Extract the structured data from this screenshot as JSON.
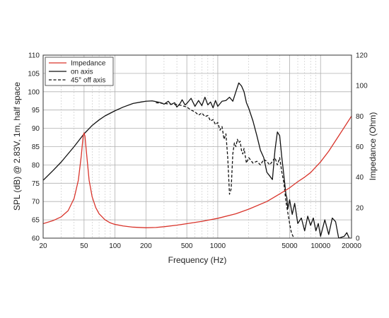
{
  "chart_data": {
    "type": "line",
    "xlabel": "Frequency (Hz)",
    "ylabel_left": "SPL (dB) @ 2.83V, 1m, half space",
    "ylabel_right": "Impedance (Ohm)",
    "x_scale": "log",
    "xlim": [
      20,
      20000
    ],
    "ylim_left": [
      60,
      110
    ],
    "ylim_right": [
      0,
      120
    ],
    "grid": true,
    "legend_position": "top-left",
    "x_ticks": [
      20,
      50,
      100,
      200,
      500,
      1000,
      5000,
      10000,
      20000
    ],
    "x_tick_labels": [
      "20",
      "50",
      "100",
      "200",
      "500",
      "1000",
      "5000",
      "10000",
      "20000"
    ],
    "y_left_ticks": [
      60,
      65,
      70,
      75,
      80,
      85,
      90,
      95,
      100,
      105,
      110
    ],
    "y_left_tick_labels": [
      "60",
      "65",
      "70",
      "75",
      "80",
      "85",
      "90",
      "95",
      "100",
      "105",
      "110"
    ],
    "y_right_ticks": [
      0,
      20,
      40,
      60,
      80,
      100,
      120
    ],
    "y_right_tick_labels": [
      "0",
      "20",
      "40",
      "60",
      "80",
      "100",
      "120"
    ],
    "series": [
      {
        "name": "Impedance",
        "axis": "right",
        "color": "#d9342b",
        "style": "solid",
        "x": [
          20,
          25,
          30,
          35,
          40,
          44,
          47,
          49,
          50,
          51,
          53,
          56,
          60,
          65,
          70,
          80,
          90,
          100,
          120,
          150,
          200,
          250,
          300,
          400,
          500,
          700,
          1000,
          1500,
          2000,
          3000,
          4000,
          5000,
          6000,
          7000,
          8000,
          10000,
          12000,
          15000,
          20000
        ],
        "y": [
          9.5,
          11.5,
          14,
          18,
          26,
          38,
          54,
          67,
          69,
          67,
          55,
          38,
          27,
          20,
          16,
          12,
          10,
          9,
          8,
          7.2,
          6.8,
          7,
          7.5,
          8.5,
          9.5,
          11,
          13,
          16,
          19,
          24,
          29,
          33,
          37,
          40,
          43,
          50,
          57,
          67,
          80
        ]
      },
      {
        "name": "on axis",
        "axis": "left",
        "color": "#111111",
        "style": "solid",
        "x": [
          20,
          25,
          30,
          40,
          50,
          60,
          70,
          80,
          100,
          120,
          150,
          180,
          200,
          230,
          250,
          280,
          300,
          330,
          350,
          380,
          400,
          430,
          450,
          480,
          500,
          550,
          600,
          650,
          700,
          750,
          800,
          850,
          900,
          950,
          1000,
          1100,
          1200,
          1300,
          1400,
          1500,
          1600,
          1700,
          1800,
          1900,
          2000,
          2200,
          2400,
          2600,
          2800,
          3000,
          3200,
          3400,
          3600,
          3800,
          4000,
          4200,
          4400,
          4600,
          4700,
          4800,
          5000,
          5300,
          5600,
          6000,
          6500,
          7000,
          7500,
          8000,
          8500,
          9000,
          9500,
          10000,
          11000,
          12000,
          13000,
          14000,
          15000,
          17000,
          18000,
          19000,
          20000
        ],
        "y": [
          75.8,
          78.5,
          80.8,
          85,
          88.5,
          90.8,
          92.3,
          93.4,
          94.8,
          95.8,
          96.8,
          97.2,
          97.4,
          97.5,
          97.3,
          97.0,
          96.6,
          97.4,
          96.5,
          97.0,
          95.8,
          96.8,
          97.8,
          96.4,
          96.8,
          98.2,
          96.0,
          97.6,
          96.2,
          98.5,
          96.4,
          97.2,
          95.6,
          97.6,
          96.0,
          97.4,
          97.6,
          98.5,
          97.4,
          100.0,
          102.4,
          101.6,
          100.0,
          97.0,
          95.5,
          92.0,
          88.0,
          84.0,
          82.0,
          78.0,
          77.0,
          76.0,
          84.0,
          89.0,
          88.0,
          82.0,
          77.0,
          72.0,
          71.0,
          68.0,
          70.5,
          66.5,
          69.5,
          64.0,
          65.5,
          62.0,
          66.0,
          63.5,
          65.5,
          62.0,
          64.0,
          60.5,
          65.0,
          61.0,
          65.5,
          64.5,
          60.0,
          60.5,
          61.5,
          60.0,
          60.0
        ]
      },
      {
        "name": "45° off axis",
        "axis": "left",
        "color": "#111111",
        "style": "dashed",
        "x": [
          250,
          300,
          350,
          400,
          450,
          500,
          550,
          600,
          650,
          700,
          750,
          800,
          850,
          900,
          950,
          1000,
          1050,
          1100,
          1150,
          1200,
          1250,
          1300,
          1350,
          1400,
          1450,
          1500,
          1550,
          1600,
          1650,
          1700,
          1750,
          1800,
          1900,
          2000,
          2200,
          2400,
          2600,
          2800,
          3000,
          3200,
          3400,
          3600,
          3800,
          4000,
          4200,
          4400,
          4600,
          4800,
          5000,
          5200,
          5500
        ],
        "y": [
          97.0,
          96.8,
          96.6,
          96.5,
          96.2,
          95.8,
          95.0,
          94.5,
          93.6,
          94.2,
          93.2,
          93.5,
          92.0,
          92.4,
          91.0,
          91.6,
          89.5,
          90.5,
          87.0,
          88.5,
          82.0,
          72.0,
          73.5,
          83.0,
          86.0,
          85.0,
          87.0,
          86.0,
          86.5,
          84.0,
          83.0,
          84.5,
          80.5,
          82.0,
          80.5,
          81.0,
          80.0,
          81.5,
          81.0,
          80.0,
          81.0,
          82.0,
          80.0,
          82.0,
          78.0,
          75.0,
          70.0,
          67.0,
          64.0,
          61.5,
          60.0
        ]
      }
    ]
  }
}
